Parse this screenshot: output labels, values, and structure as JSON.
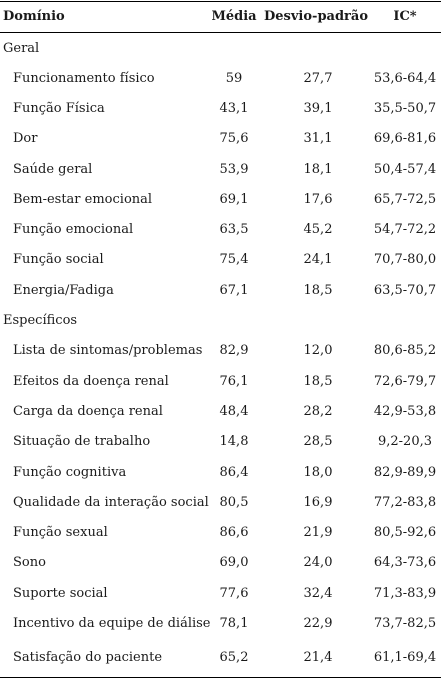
{
  "header": {
    "domain": "Domínio",
    "mean": "Média",
    "sd": "Desvio-padrão",
    "ci": "IC*"
  },
  "sections": [
    {
      "title": "Geral",
      "rows": [
        {
          "label": "Funcionamento físico",
          "mean": "59",
          "sd": "27,7",
          "ci": "53,6-64,4"
        },
        {
          "label": "Função Física",
          "mean": "43,1",
          "sd": "39,1",
          "ci": "35,5-50,7"
        },
        {
          "label": "Dor",
          "mean": "75,6",
          "sd": "31,1",
          "ci": "69,6-81,6"
        },
        {
          "label": "Saúde geral",
          "mean": "53,9",
          "sd": "18,1",
          "ci": "50,4-57,4"
        },
        {
          "label": "Bem-estar emocional",
          "mean": "69,1",
          "sd": "17,6",
          "ci": "65,7-72,5"
        },
        {
          "label": "Função emocional",
          "mean": "63,5",
          "sd": "45,2",
          "ci": "54,7-72,2"
        },
        {
          "label": "Função social",
          "mean": "75,4",
          "sd": "24,1",
          "ci": "70,7-80,0"
        },
        {
          "label": "Energia/Fadiga",
          "mean": "67,1",
          "sd": "18,5",
          "ci": "63,5-70,7"
        }
      ]
    },
    {
      "title": "Específicos",
      "rows": [
        {
          "label": "Lista de sintomas/problemas",
          "mean": "82,9",
          "sd": "12,0",
          "ci": "80,6-85,2"
        },
        {
          "label": "Efeitos da doença renal",
          "mean": "76,1",
          "sd": "18,5",
          "ci": "72,6-79,7"
        },
        {
          "label": "Carga da doença renal",
          "mean": "48,4",
          "sd": "28,2",
          "ci": "42,9-53,8"
        },
        {
          "label": "Situação de trabalho",
          "mean": "14,8",
          "sd": "28,5",
          "ci": "9,2-20,3"
        },
        {
          "label": "Função cognitiva",
          "mean": "86,4",
          "sd": "18,0",
          "ci": "82,9-89,9"
        },
        {
          "label": "Qualidade da interação social",
          "mean": "80,5",
          "sd": "16,9",
          "ci": "77,2-83,8"
        },
        {
          "label": "Função sexual",
          "mean": "86,6",
          "sd": "21,9",
          "ci": "80,5-92,6"
        },
        {
          "label": "Sono",
          "mean": "69,0",
          "sd": "24,0",
          "ci": "64,3-73,6"
        },
        {
          "label": "Suporte social",
          "mean": "77,6",
          "sd": "32,4",
          "ci": "71,3-83,9"
        },
        {
          "label": "Incentivo da equipe de diálise",
          "mean": "78,1",
          "sd": "22,9",
          "ci": "73,7-82,5"
        },
        {
          "label": "Satisfação do paciente",
          "mean": "65,2",
          "sd": "21,4",
          "ci": "61,1-69,4"
        }
      ]
    }
  ]
}
